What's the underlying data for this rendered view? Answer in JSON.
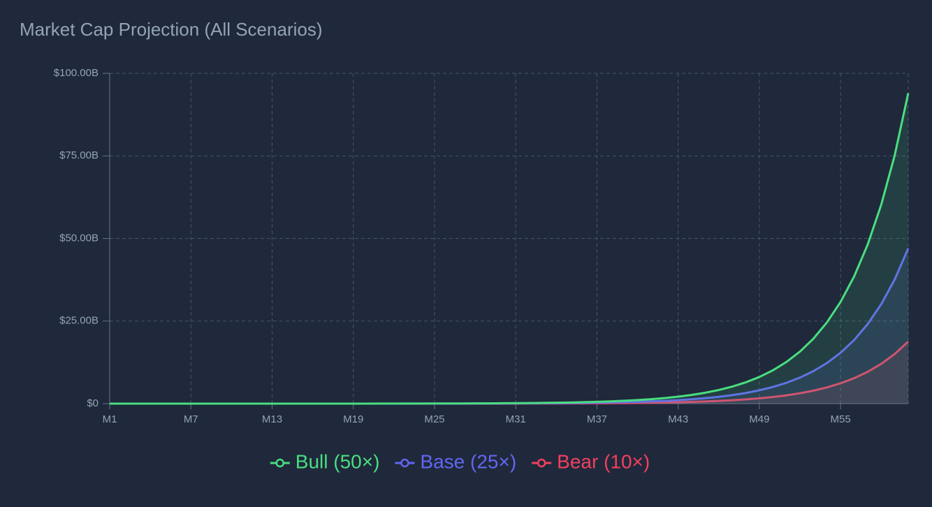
{
  "chart_data": {
    "type": "line",
    "title": "Market Cap Projection (All Scenarios)",
    "categories": [
      "M1",
      null,
      null,
      null,
      null,
      null,
      "M7",
      null,
      null,
      null,
      null,
      null,
      "M13",
      null,
      null,
      null,
      null,
      null,
      "M19",
      null,
      null,
      null,
      null,
      null,
      "M25",
      null,
      null,
      null,
      null,
      null,
      "M31",
      null,
      null,
      null,
      null,
      null,
      "M37",
      null,
      null,
      null,
      null,
      null,
      "M43",
      null,
      null,
      null,
      null,
      null,
      "M49",
      null,
      null,
      null,
      null,
      null,
      "M55",
      null,
      null,
      null,
      null,
      null
    ],
    "series": [
      {
        "name": "Bull (50×)",
        "color": "#4ade80",
        "values": [
          0,
          0,
          0,
          0,
          0,
          0,
          0,
          0,
          0,
          0,
          0,
          0,
          0,
          0,
          0,
          0.01,
          0.01,
          0.01,
          0.01,
          0.01,
          0.02,
          0.02,
          0.03,
          0.03,
          0.04,
          0.05,
          0.06,
          0.08,
          0.09,
          0.12,
          0.15,
          0.18,
          0.23,
          0.28,
          0.35,
          0.44,
          0.55,
          0.69,
          0.87,
          1.08,
          1.35,
          1.69,
          2.12,
          2.65,
          3.31,
          4.13,
          5.17,
          6.46,
          8.07,
          10.09,
          12.62,
          15.77,
          19.71,
          24.64,
          30.8,
          38.5,
          48.13,
          60.16,
          75.2,
          94
        ]
      },
      {
        "name": "Base (25×)",
        "color": "#6366f1",
        "values": [
          0,
          0,
          0,
          0,
          0,
          0,
          0,
          0,
          0,
          0,
          0,
          0,
          0,
          0,
          0,
          0,
          0,
          0,
          0,
          0.01,
          0.01,
          0.01,
          0.02,
          0.02,
          0.02,
          0.03,
          0.03,
          0.04,
          0.05,
          0.06,
          0.08,
          0.09,
          0.12,
          0.14,
          0.18,
          0.22,
          0.28,
          0.35,
          0.44,
          0.54,
          0.68,
          0.85,
          1.06,
          1.33,
          1.66,
          2.07,
          2.59,
          3.23,
          4.04,
          5.05,
          6.31,
          7.89,
          9.86,
          12.32,
          15.4,
          19.25,
          24.07,
          30.08,
          37.6,
          47
        ]
      },
      {
        "name": "Bear (10×)",
        "color": "#f43f5e",
        "values": [
          0,
          0,
          0,
          0,
          0,
          0,
          0,
          0,
          0,
          0,
          0,
          0,
          0,
          0,
          0,
          0,
          0,
          0,
          0,
          0,
          0,
          0,
          0,
          0,
          0.01,
          0.01,
          0.01,
          0.02,
          0.02,
          0.02,
          0.03,
          0.04,
          0.05,
          0.06,
          0.07,
          0.09,
          0.11,
          0.14,
          0.17,
          0.22,
          0.27,
          0.34,
          0.42,
          0.53,
          0.66,
          0.83,
          1.03,
          1.29,
          1.61,
          2.02,
          2.52,
          3.15,
          3.94,
          4.93,
          6.16,
          7.7,
          9.63,
          12.03,
          15.04,
          18.8
        ]
      }
    ],
    "ylim": [
      0,
      100
    ],
    "yticks": [
      {
        "value": 0,
        "label": "$0"
      },
      {
        "value": 25,
        "label": "$25.00B"
      },
      {
        "value": 50,
        "label": "$50.00B"
      },
      {
        "value": 75,
        "label": "$75.00B"
      },
      {
        "value": 100,
        "label": "$100.00B"
      }
    ],
    "grid": true,
    "legend": "bottom",
    "fill": true
  }
}
